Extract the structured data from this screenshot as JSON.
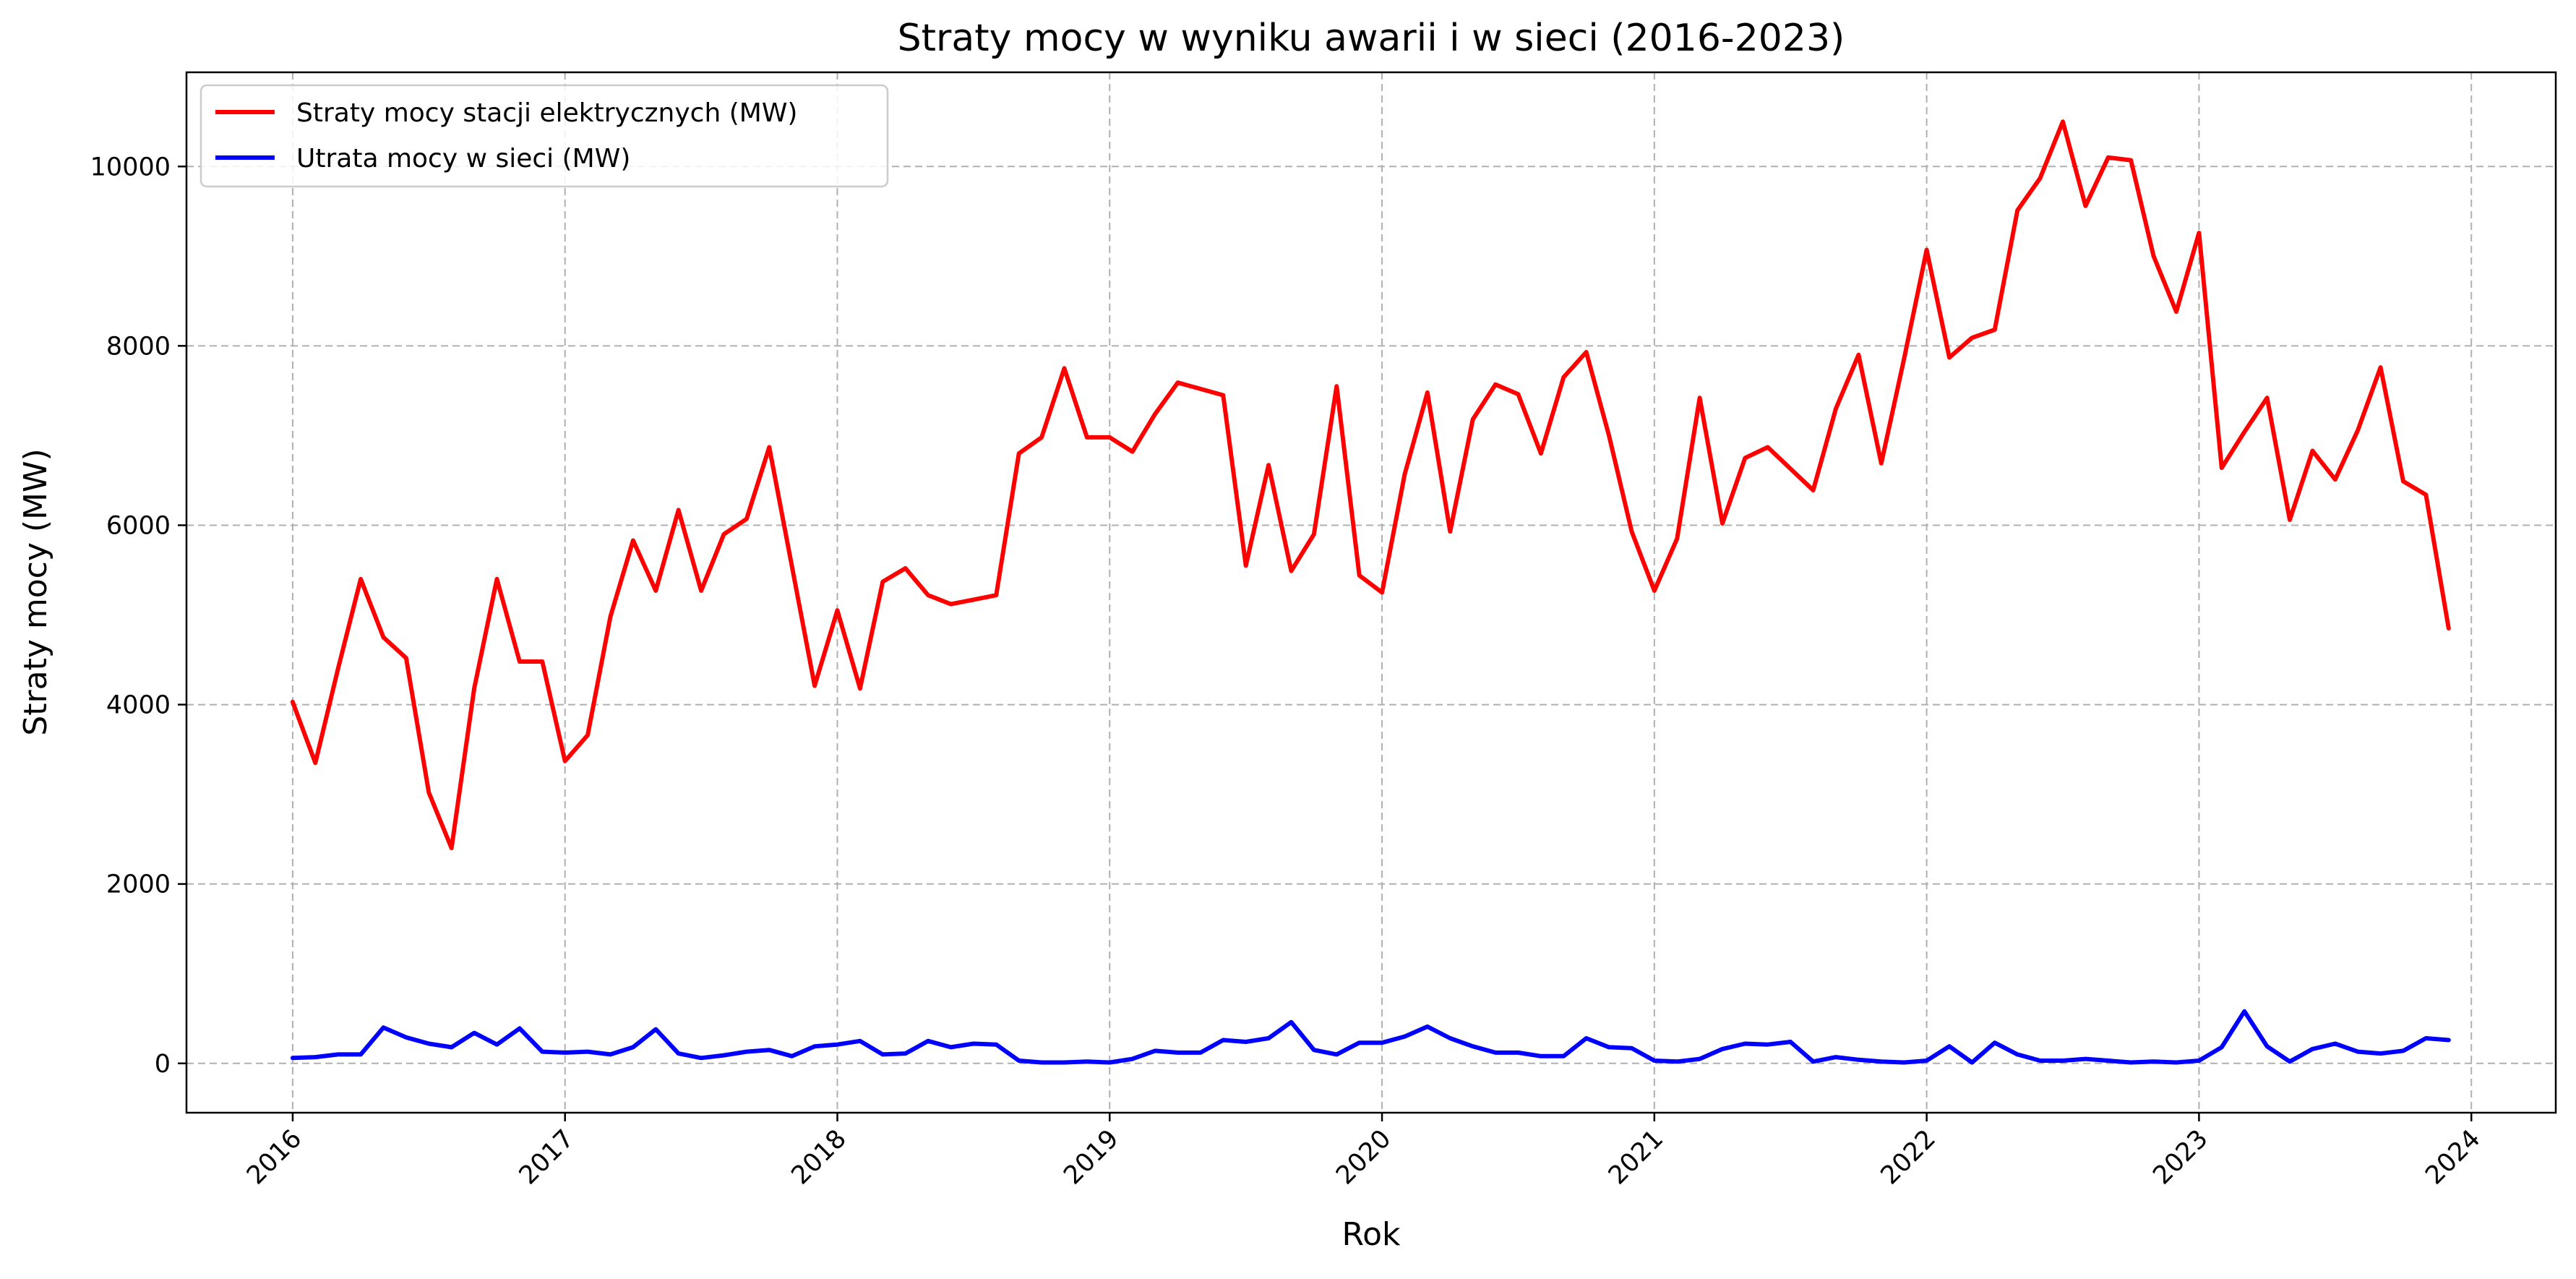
{
  "chart_data": {
    "type": "line",
    "title": "Straty mocy w wyniku awarii i w sieci (2016-2023)",
    "xlabel": "Rok",
    "ylabel": "Straty mocy (MW)",
    "xlim": [
      2015.61,
      2024.31
    ],
    "ylim": [
      -550,
      11050
    ],
    "x_ticks": [
      2016,
      2017,
      2018,
      2019,
      2020,
      2021,
      2022,
      2023,
      2024
    ],
    "y_ticks": [
      0,
      2000,
      4000,
      6000,
      8000,
      10000
    ],
    "grid": true,
    "legend_position": "top-left",
    "x_start": "2016-01",
    "x_step": "1 month",
    "series": [
      {
        "name": "Straty mocy stacji elektrycznych (MW)",
        "color": "#ff0000",
        "values": [
          4030,
          3350,
          4400,
          5400,
          4750,
          4520,
          3020,
          2400,
          4180,
          5400,
          4480,
          4480,
          3370,
          3660,
          4980,
          5830,
          5270,
          6170,
          5270,
          5900,
          6070,
          6870,
          5540,
          4210,
          5050,
          4180,
          5370,
          5520,
          5220,
          5120,
          5170,
          5220,
          6800,
          6980,
          7750,
          6980,
          6980,
          6820,
          7240,
          7590,
          7520,
          7450,
          5550,
          6670,
          5490,
          5900,
          7550,
          5440,
          5250,
          6570,
          7480,
          5930,
          7180,
          7570,
          7460,
          6800,
          7650,
          7930,
          7000,
          5930,
          5270,
          5850,
          7420,
          6020,
          6750,
          6870,
          6630,
          6390,
          7300,
          7900,
          6690,
          7850,
          9070,
          7870,
          8090,
          8180,
          9510,
          9870,
          10500,
          9560,
          10100,
          10070,
          9000,
          8380,
          9260,
          6640,
          7040,
          7420,
          6060,
          6830,
          6510,
          7060,
          7760,
          6490,
          6340,
          4850
        ]
      },
      {
        "name": "Utrata mocy w sieci (MW)",
        "color": "#0000ff",
        "values": [
          60,
          70,
          100,
          100,
          400,
          290,
          220,
          180,
          340,
          210,
          390,
          130,
          120,
          130,
          100,
          180,
          380,
          110,
          60,
          90,
          130,
          150,
          80,
          190,
          210,
          250,
          100,
          110,
          250,
          180,
          220,
          210,
          30,
          10,
          10,
          20,
          10,
          50,
          140,
          120,
          120,
          260,
          240,
          280,
          460,
          150,
          100,
          230,
          230,
          300,
          410,
          280,
          190,
          120,
          120,
          80,
          80,
          280,
          180,
          170,
          30,
          20,
          50,
          160,
          220,
          210,
          240,
          20,
          70,
          40,
          20,
          10,
          30,
          190,
          10,
          230,
          100,
          30,
          30,
          50,
          30,
          10,
          20,
          10,
          30,
          180,
          580,
          190,
          20,
          160,
          220,
          130,
          110,
          140,
          280,
          260
        ]
      }
    ]
  }
}
